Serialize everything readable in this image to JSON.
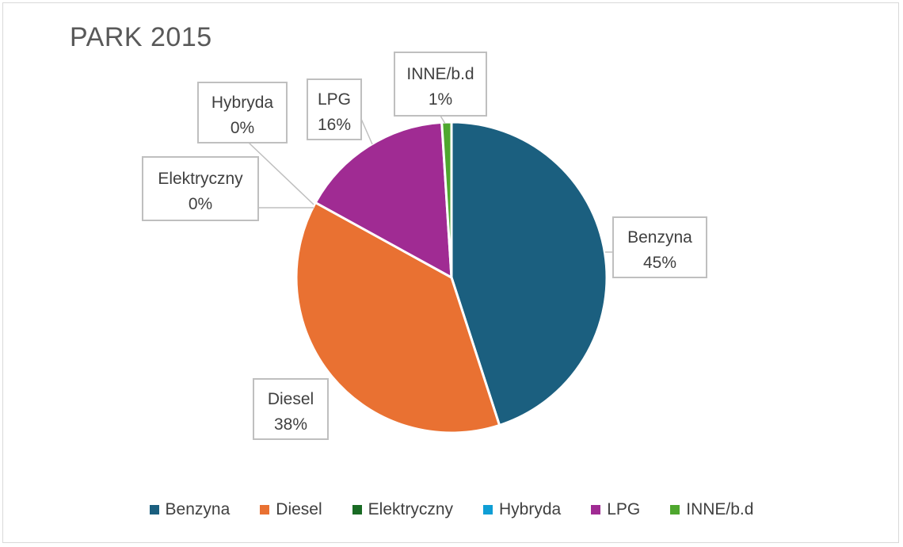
{
  "chart_data": {
    "type": "pie",
    "title": "PARK 2015",
    "categories": [
      "Benzyna",
      "Diesel",
      "Elektryczny",
      "Hybryda",
      "LPG",
      "INNE/b.d"
    ],
    "values": [
      45,
      38,
      0,
      0,
      16,
      1
    ],
    "labels": [
      "45%",
      "38%",
      "0%",
      "0%",
      "16%",
      "1%"
    ],
    "colors": [
      "#1b5f7f",
      "#e97132",
      "#196b24",
      "#0f9ed5",
      "#a02b93",
      "#4ea72e"
    ],
    "legend_position": "bottom"
  }
}
